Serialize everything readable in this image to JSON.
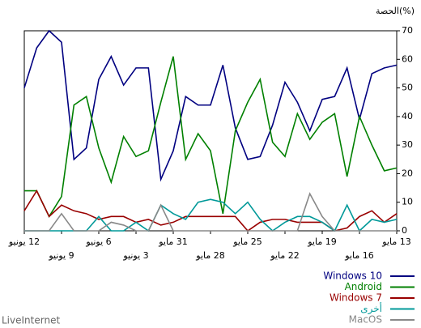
{
  "chart_data": {
    "type": "line",
    "title": "الحصة(%)",
    "source": "LiveInternet",
    "categories": [
      "12 يونيو",
      null,
      null,
      "9 يونيو",
      null,
      null,
      "6 يونيو",
      null,
      null,
      "3 يونيو",
      null,
      null,
      "31 مايو",
      null,
      null,
      "28 مايو",
      null,
      null,
      "25 مايو",
      null,
      null,
      "22 مايو",
      null,
      null,
      "19 مايو",
      null,
      null,
      "16 مايو",
      null,
      null,
      "13 مايو"
    ],
    "ylim": [
      0,
      70
    ],
    "yticks": [
      0,
      10,
      20,
      30,
      40,
      50,
      60,
      70
    ],
    "series": [
      {
        "name": "Windows 10",
        "color": "#000080",
        "values": [
          50,
          64,
          70,
          66,
          25,
          29,
          53,
          61,
          51,
          57,
          57,
          18,
          28,
          47,
          44,
          44,
          58,
          36,
          25,
          26,
          37,
          52,
          45,
          35,
          46,
          47,
          57,
          39,
          55,
          57,
          58
        ]
      },
      {
        "name": "Android",
        "color": "#008000",
        "values": [
          14,
          14,
          5,
          12,
          44,
          47,
          29,
          17,
          33,
          26,
          28,
          45,
          61,
          25,
          34,
          28,
          6,
          35,
          45,
          53,
          31,
          26,
          41,
          32,
          38,
          41,
          19,
          40,
          30,
          21,
          22
        ]
      },
      {
        "name": "Windows 7",
        "color": "#990000",
        "values": [
          7,
          14,
          5,
          9,
          7,
          6,
          4,
          5,
          5,
          3,
          4,
          2,
          3,
          5,
          5,
          5,
          5,
          5,
          0,
          3,
          4,
          4,
          3,
          3,
          3,
          0,
          1,
          5,
          7,
          3,
          6
        ]
      },
      {
        "name": "أخرى",
        "color": "#009999",
        "values": [
          0,
          0,
          0,
          0,
          0,
          0,
          5,
          0,
          0,
          3,
          0,
          9,
          6,
          4,
          10,
          11,
          10,
          6,
          10,
          4,
          0,
          3,
          5,
          5,
          3,
          0,
          9,
          0,
          4,
          3,
          4
        ]
      },
      {
        "name": "MacOS",
        "color": "#888888",
        "values": [
          0,
          0,
          0,
          6,
          0,
          0,
          0,
          3,
          2,
          0,
          0,
          9,
          0,
          0,
          0,
          0,
          0,
          0,
          0,
          0,
          0,
          0,
          0,
          13,
          5,
          0,
          0,
          0,
          0,
          0,
          0
        ]
      }
    ]
  }
}
